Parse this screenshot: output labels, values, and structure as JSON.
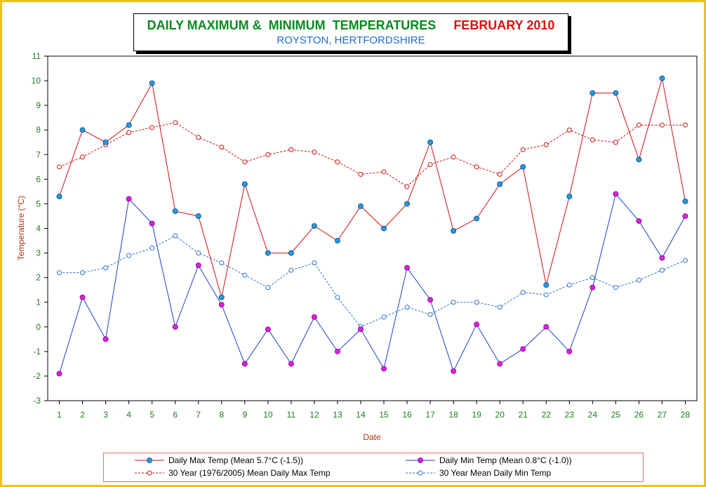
{
  "title": {
    "main": "DAILY MAXIMUM &  MINIMUM  TEMPERATURES",
    "month": "FEBRUARY 2010",
    "subtitle": "ROYSTON, HERTFORDSHIRE"
  },
  "colors": {
    "max": "#d01010",
    "min": "#1a3fd0",
    "max_marker": "#2a9ad8",
    "min_marker": "#e020e0",
    "tick": "#1f7a1f",
    "axis_title": "#b03010",
    "border": "#f0c020"
  },
  "chart_data": {
    "type": "line",
    "xlabel": "Date",
    "ylabel": "Temperature (°C)",
    "x": [
      1,
      2,
      3,
      4,
      5,
      6,
      7,
      8,
      9,
      10,
      11,
      12,
      13,
      14,
      15,
      16,
      17,
      18,
      19,
      20,
      21,
      22,
      23,
      24,
      25,
      26,
      27,
      28
    ],
    "ylim": [
      -3,
      11
    ],
    "yticks": [
      -3,
      -2,
      -1,
      0,
      1,
      2,
      3,
      4,
      5,
      6,
      7,
      8,
      9,
      10,
      11
    ],
    "grid": true,
    "legend_position": "bottom",
    "series": [
      {
        "name": "Daily Max Temp (Mean 5.7°C (-1.5))",
        "style": "solid",
        "values": [
          5.3,
          8.0,
          7.5,
          8.2,
          9.9,
          4.7,
          4.5,
          1.2,
          5.8,
          3.0,
          3.0,
          4.1,
          3.5,
          4.9,
          4.0,
          5.0,
          7.5,
          3.9,
          4.4,
          5.8,
          6.5,
          1.7,
          5.3,
          9.5,
          9.5,
          6.8,
          10.1,
          5.1
        ]
      },
      {
        "name": "Daily Min Temp (Mean 0.8°C (-1.0))",
        "style": "solid",
        "values": [
          -1.9,
          1.2,
          -0.5,
          5.2,
          4.2,
          0.0,
          2.5,
          0.9,
          -1.5,
          -0.1,
          -1.5,
          0.4,
          -1.0,
          -0.1,
          -1.7,
          2.4,
          1.1,
          -1.8,
          0.1,
          -1.5,
          -0.9,
          0.0,
          -1.0,
          1.6,
          5.4,
          4.3,
          2.8,
          4.5
        ]
      },
      {
        "name": "30 Year (1976/2005) Mean Daily Max Temp",
        "style": "dashed",
        "values": [
          6.5,
          6.9,
          7.4,
          7.9,
          8.1,
          8.3,
          7.7,
          7.3,
          6.7,
          7.0,
          7.2,
          7.1,
          6.7,
          6.2,
          6.3,
          5.7,
          6.6,
          6.9,
          6.5,
          6.2,
          7.2,
          7.4,
          8.0,
          7.6,
          7.5,
          8.2,
          8.2,
          8.2
        ]
      },
      {
        "name": "30 Year Mean Daily Min Temp",
        "style": "dashed",
        "values": [
          2.2,
          2.2,
          2.4,
          2.9,
          3.2,
          3.7,
          3.0,
          2.6,
          2.1,
          1.6,
          2.3,
          2.6,
          1.2,
          0.0,
          0.4,
          0.8,
          0.5,
          1.0,
          1.0,
          0.8,
          1.4,
          1.3,
          1.7,
          2.0,
          1.6,
          1.9,
          2.3,
          2.7
        ]
      }
    ]
  }
}
